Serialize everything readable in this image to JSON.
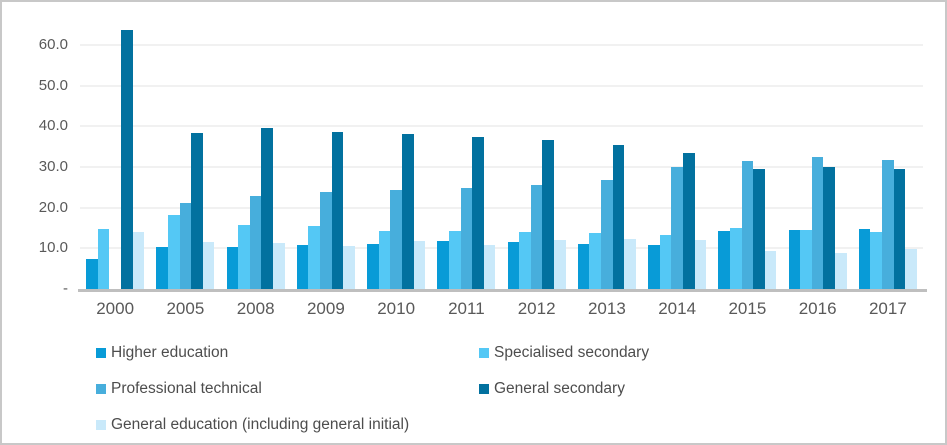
{
  "chart_data": {
    "type": "bar",
    "title": "",
    "categories": [
      "2000",
      "2005",
      "2008",
      "2009",
      "2010",
      "2011",
      "2012",
      "2013",
      "2014",
      "2015",
      "2016",
      "2017"
    ],
    "series": [
      {
        "name": "Higher education",
        "color": "#089bd7",
        "values": [
          7.5,
          10.4,
          10.3,
          10.8,
          11.0,
          11.8,
          11.5,
          11.0,
          10.8,
          14.3,
          14.4,
          14.7
        ]
      },
      {
        "name": "Specialised secondary",
        "color": "#54c8f5",
        "values": [
          14.7,
          18.1,
          15.7,
          15.6,
          14.3,
          14.3,
          13.9,
          13.8,
          13.2,
          14.9,
          14.5,
          13.9
        ]
      },
      {
        "name": "Professional technical",
        "color": "#47aedc",
        "values": [
          0,
          21.2,
          22.9,
          23.8,
          24.3,
          24.8,
          25.5,
          26.9,
          30.1,
          31.5,
          32.5,
          31.8
        ]
      },
      {
        "name": "General secondary",
        "color": "#02719f",
        "values": [
          63.6,
          38.4,
          39.7,
          38.7,
          38.0,
          37.4,
          36.6,
          35.3,
          33.4,
          29.5,
          30.0,
          29.5
        ]
      },
      {
        "name": "General education (including general initial)",
        "color": "#c9e9fa",
        "values": [
          14.0,
          11.5,
          11.3,
          10.5,
          11.8,
          10.8,
          12.1,
          12.4,
          12.0,
          9.3,
          8.9,
          9.9
        ]
      }
    ],
    "y_axis": {
      "ticks": [
        "60.0",
        "50.0",
        "40.0",
        "30.0",
        "20.0",
        "10.0",
        "-"
      ],
      "tick_values": [
        60,
        50,
        40,
        30,
        20,
        10,
        0
      ],
      "max": 65
    },
    "grid": true,
    "legend_position": "bottom"
  },
  "style": {
    "axis_text_color": "#595959",
    "legend_text_color": "#4d4d4d",
    "gridline_color": "#f1f1f1",
    "baseline_color": "#bfbfbf",
    "frame_border_color": "#c8c8c8",
    "background_color": "#ffffff"
  }
}
